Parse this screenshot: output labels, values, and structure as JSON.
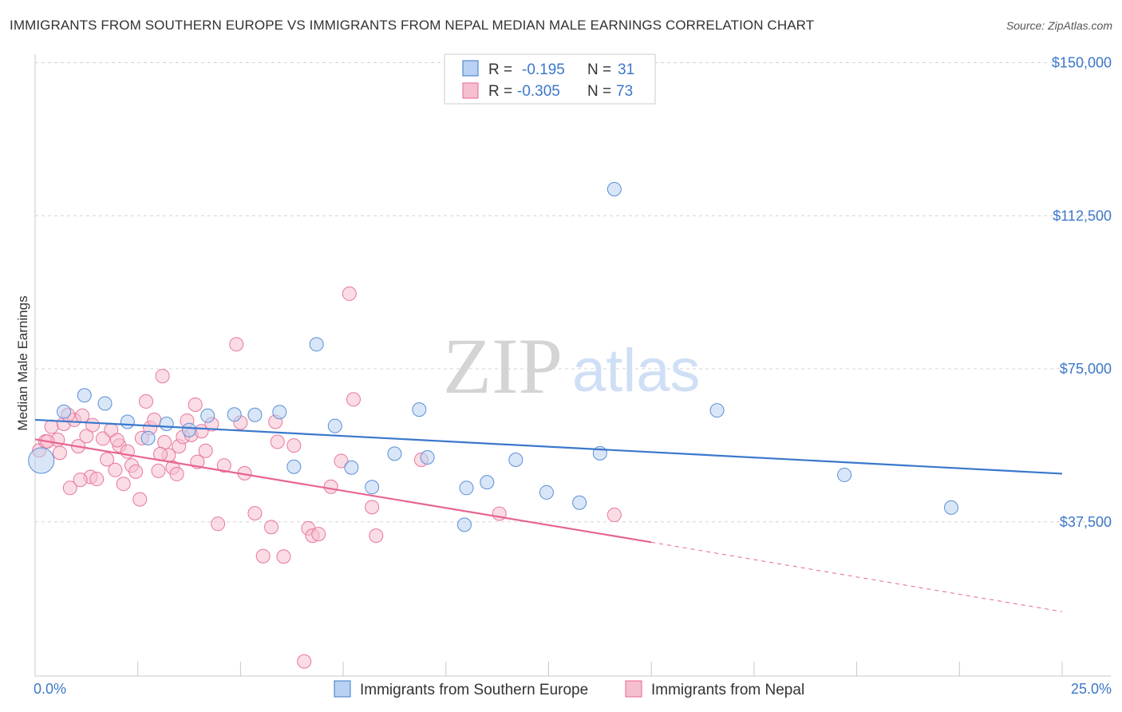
{
  "header": {
    "title": "IMMIGRANTS FROM SOUTHERN EUROPE VS IMMIGRANTS FROM NEPAL MEDIAN MALE EARNINGS CORRELATION CHART",
    "source": "Source: ZipAtlas.com"
  },
  "colors": {
    "blue": "#3a78cc",
    "blue_fill": "#b9d1f2",
    "pink": "#e8648e",
    "pink_fill": "#f6bfd0",
    "grid": "#d0d0d0",
    "tick_text": "#3c78c8"
  },
  "legend": {
    "rows": [
      {
        "r_label": "R =",
        "r_value": "-0.195",
        "n_label": "N =",
        "n_value": "31",
        "series": "blue"
      },
      {
        "r_label": "R =",
        "r_value": "-0.305",
        "n_label": "N =",
        "n_value": "73",
        "series": "pink"
      }
    ]
  },
  "watermark": {
    "zip": "ZIP",
    "atlas": "atlas"
  },
  "chart_data": {
    "type": "scatter",
    "title": "IMMIGRANTS FROM SOUTHERN EUROPE VS IMMIGRANTS FROM NEPAL MEDIAN MALE EARNINGS CORRELATION CHART",
    "xlabel": "",
    "ylabel": "Median Male Earnings",
    "xlim": [
      0,
      25
    ],
    "ylim": [
      0,
      155000
    ],
    "x_tick_labels": [
      "0.0%",
      "25.0%"
    ],
    "y_ticks": [
      37500,
      75000,
      112500,
      150000
    ],
    "y_tick_labels": [
      "$37,500",
      "$75,000",
      "$112,500",
      "$150,000"
    ],
    "grid": true,
    "series": [
      {
        "name": "Immigrants from Southern Europe",
        "color": "#3a78cc",
        "trend": {
          "x": [
            0,
            25
          ],
          "y": [
            62500,
            49300
          ],
          "dashed_from": null
        },
        "points": [
          [
            0.15,
            52500
          ],
          [
            0.7,
            64500
          ],
          [
            1.2,
            68500
          ],
          [
            1.7,
            66500
          ],
          [
            2.25,
            62000
          ],
          [
            2.75,
            58000
          ],
          [
            3.2,
            61500
          ],
          [
            3.75,
            60000
          ],
          [
            4.2,
            63500
          ],
          [
            4.85,
            63800
          ],
          [
            5.35,
            63700
          ],
          [
            5.95,
            64400
          ],
          [
            6.3,
            51000
          ],
          [
            6.85,
            81000
          ],
          [
            7.3,
            61000
          ],
          [
            7.7,
            50800
          ],
          [
            8.2,
            46000
          ],
          [
            8.75,
            54200
          ],
          [
            9.35,
            65000
          ],
          [
            9.55,
            53300
          ],
          [
            10.45,
            36800
          ],
          [
            10.5,
            45800
          ],
          [
            11.0,
            47200
          ],
          [
            11.7,
            52700
          ],
          [
            12.45,
            44700
          ],
          [
            13.25,
            42200
          ],
          [
            13.75,
            54300
          ],
          [
            14.1,
            119000
          ],
          [
            16.6,
            64800
          ],
          [
            19.7,
            49000
          ],
          [
            22.3,
            41000
          ]
        ]
      },
      {
        "name": "Immigrants from Nepal",
        "color": "#e8648e",
        "trend": {
          "x": [
            0,
            15
          ],
          "y": [
            57700,
            32500
          ],
          "dashed_to": [
            25,
            15500
          ]
        },
        "points": [
          [
            0.1,
            55000
          ],
          [
            0.25,
            57200
          ],
          [
            0.4,
            60800
          ],
          [
            0.55,
            57600
          ],
          [
            0.7,
            61500
          ],
          [
            0.85,
            45800
          ],
          [
            0.95,
            62500
          ],
          [
            1.05,
            56000
          ],
          [
            1.15,
            63500
          ],
          [
            1.25,
            58500
          ],
          [
            1.35,
            48500
          ],
          [
            1.5,
            48000
          ],
          [
            1.65,
            57900
          ],
          [
            1.75,
            52800
          ],
          [
            1.85,
            60000
          ],
          [
            1.95,
            50200
          ],
          [
            2.05,
            56200
          ],
          [
            2.15,
            46800
          ],
          [
            2.25,
            54700
          ],
          [
            2.35,
            51300
          ],
          [
            2.45,
            49800
          ],
          [
            2.55,
            43000
          ],
          [
            2.6,
            58000
          ],
          [
            2.7,
            67000
          ],
          [
            2.8,
            60500
          ],
          [
            2.9,
            62500
          ],
          [
            3.0,
            50000
          ],
          [
            3.1,
            73200
          ],
          [
            3.15,
            57000
          ],
          [
            3.25,
            53800
          ],
          [
            3.35,
            50800
          ],
          [
            3.45,
            49200
          ],
          [
            3.5,
            56000
          ],
          [
            3.6,
            58300
          ],
          [
            3.7,
            62300
          ],
          [
            3.8,
            58800
          ],
          [
            3.9,
            66200
          ],
          [
            3.95,
            52200
          ],
          [
            4.05,
            59700
          ],
          [
            4.15,
            54900
          ],
          [
            4.3,
            61400
          ],
          [
            4.45,
            37000
          ],
          [
            4.6,
            51300
          ],
          [
            4.9,
            81000
          ],
          [
            5.1,
            49400
          ],
          [
            5.35,
            39600
          ],
          [
            5.55,
            29100
          ],
          [
            5.75,
            36200
          ],
          [
            5.85,
            62000
          ],
          [
            5.9,
            57100
          ],
          [
            6.05,
            29000
          ],
          [
            6.3,
            56200
          ],
          [
            6.55,
            3300
          ],
          [
            6.65,
            35900
          ],
          [
            6.75,
            34100
          ],
          [
            6.9,
            34500
          ],
          [
            7.2,
            46100
          ],
          [
            7.45,
            52400
          ],
          [
            7.65,
            93400
          ],
          [
            7.75,
            67500
          ],
          [
            8.2,
            41100
          ],
          [
            8.3,
            34100
          ],
          [
            9.4,
            52700
          ],
          [
            14.1,
            39200
          ],
          [
            0.3,
            57200
          ],
          [
            0.6,
            54400
          ],
          [
            0.8,
            63700
          ],
          [
            1.1,
            47800
          ],
          [
            1.4,
            61200
          ],
          [
            2.0,
            57500
          ],
          [
            3.05,
            54100
          ],
          [
            5.0,
            61800
          ],
          [
            11.3,
            39500
          ]
        ]
      }
    ]
  },
  "bottom_legend": [
    {
      "label": "Immigrants from Southern Europe",
      "series": "blue"
    },
    {
      "label": "Immigrants from Nepal",
      "series": "pink"
    }
  ]
}
